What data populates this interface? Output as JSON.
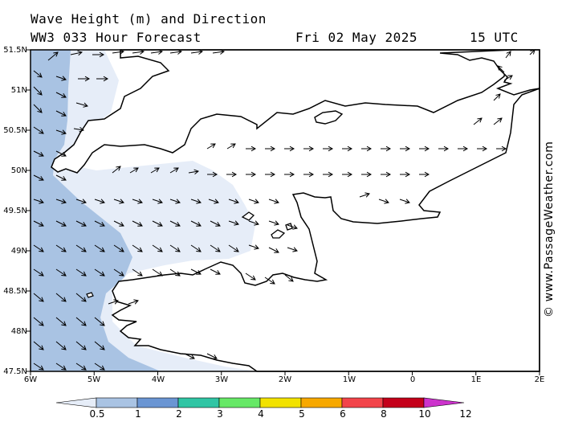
{
  "header": {
    "title_line1": "Wave Height (m) and Direction",
    "title_line2": "WW3 033 Hour Forecast",
    "date": "Fri 02 May 2025",
    "time": "15 UTC"
  },
  "brand": "© www.PassageWeather.com",
  "axes": {
    "lat_labels": [
      "51.5N",
      "51N",
      "50.5N",
      "50N",
      "49.5N",
      "49N",
      "48.5N",
      "48N",
      "47.5N"
    ],
    "lon_labels": [
      "6W",
      "5W",
      "4W",
      "3W",
      "2W",
      "1W",
      "0",
      "1E",
      "2E"
    ]
  },
  "colorbar": {
    "colors": [
      "#e6edf8",
      "#a9c3e3",
      "#6a95d3",
      "#30c5a4",
      "#66e866",
      "#f2e200",
      "#f7a800",
      "#f2444a",
      "#c4001a",
      "#cc33cc"
    ],
    "labels": [
      "0.5",
      "1",
      "2",
      "3",
      "4",
      "5",
      "6",
      "8",
      "10",
      "12"
    ]
  },
  "map_colors": {
    "sea_calm": "#ffffff",
    "sea_light": "#e6edf8",
    "sea_medium": "#a9c3e3",
    "land": "#ffffff",
    "coast": "#000000"
  }
}
